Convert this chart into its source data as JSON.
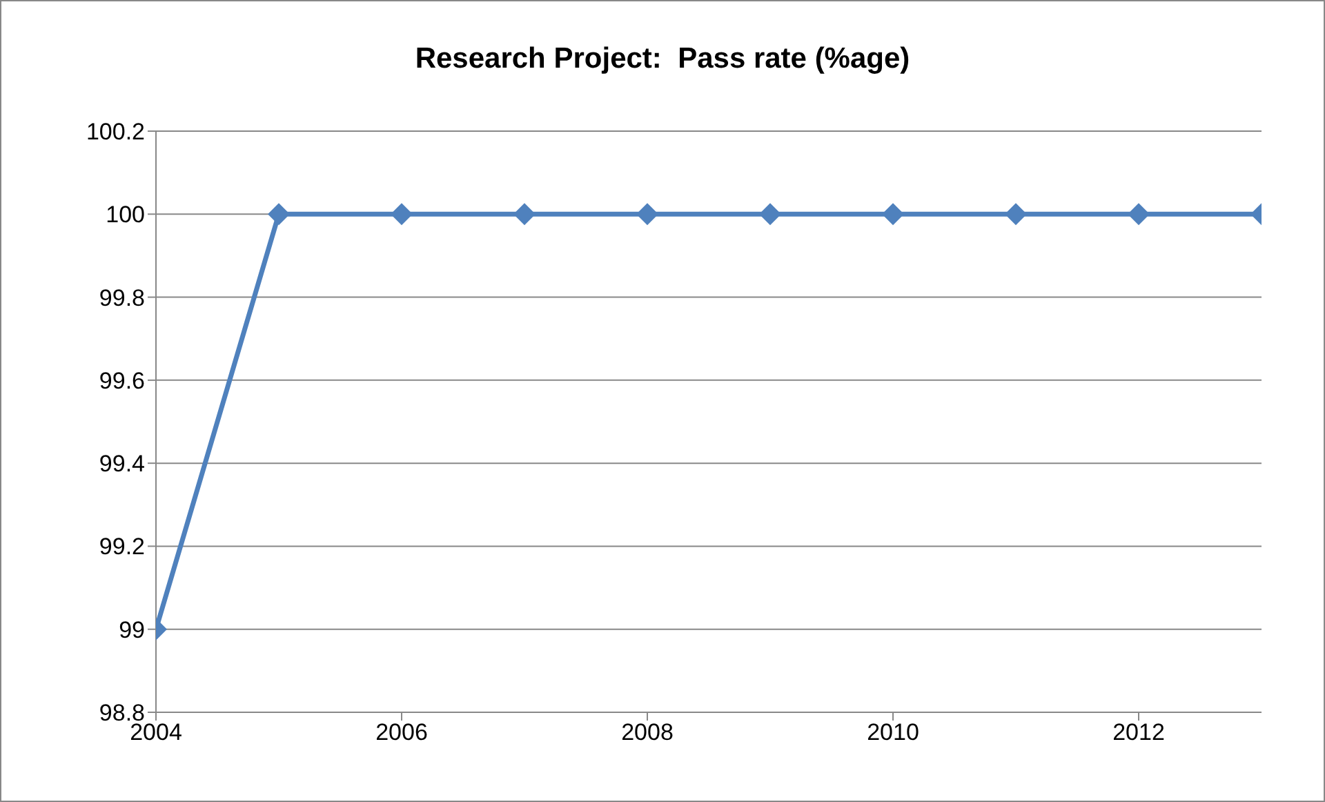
{
  "chart_data": {
    "type": "line",
    "title": "Research Project:  Pass rate (%age)",
    "x": [
      2004,
      2005,
      2006,
      2007,
      2008,
      2009,
      2010,
      2011,
      2012,
      2013
    ],
    "series": [
      {
        "color": "#4f81bd",
        "values": [
          99,
          100,
          100,
          100,
          100,
          100,
          100,
          100,
          100,
          100
        ]
      }
    ],
    "xlim": [
      2004,
      2013
    ],
    "xticks": [
      2004,
      2006,
      2008,
      2010,
      2012
    ],
    "ylim": [
      98.8,
      100.2
    ],
    "yticks": [
      98.8,
      99,
      99.2,
      99.4,
      99.6,
      99.8,
      100,
      100.2
    ],
    "grid": "y",
    "marker": "diamond",
    "line_style": "solid"
  }
}
